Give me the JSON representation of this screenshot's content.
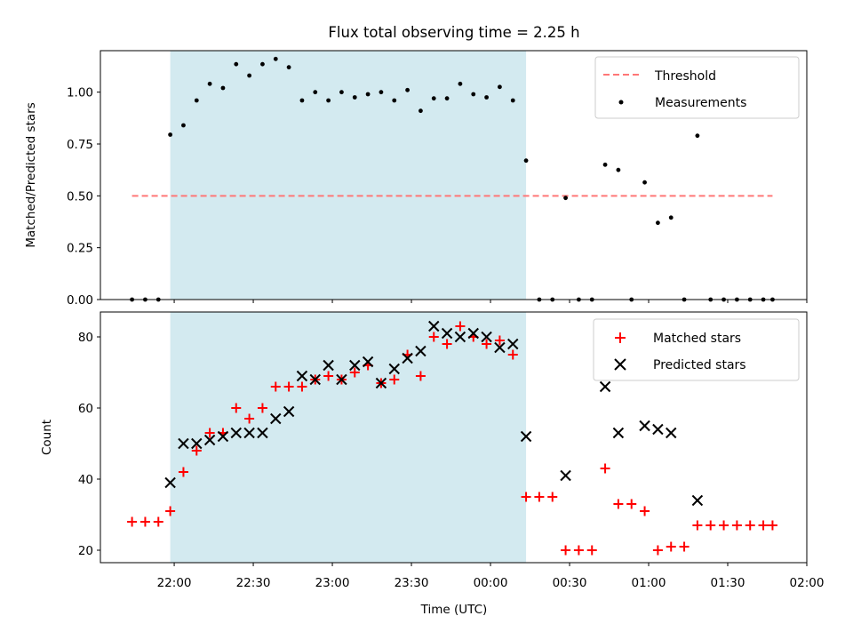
{
  "chart_data": {
    "title": "Flux total observing time = 2.25 h",
    "xlabel": "Time (UTC)",
    "x_ticks": [
      "22:00",
      "22:30",
      "23:00",
      "23:30",
      "00:00",
      "00:30",
      "01:00",
      "01:30",
      "02:00"
    ],
    "x_tick_minutes": [
      0,
      30,
      60,
      90,
      120,
      150,
      180,
      210,
      240
    ],
    "xlim_minutes": [
      -28,
      240
    ],
    "shaded_interval_minutes": [
      -1.5,
      133.5
    ],
    "shade_color": "#d3eaf0",
    "panels": [
      {
        "type": "scatter",
        "ylabel": "Matched/Predicted stars",
        "ylim": [
          0,
          1.2
        ],
        "y_ticks": [
          0.0,
          0.25,
          0.5,
          0.75,
          1.0
        ],
        "y_tick_labels": [
          "0.00",
          "0.25",
          "0.50",
          "0.75",
          "1.00"
        ],
        "threshold": {
          "name": "Threshold",
          "value": 0.5,
          "x_range": [
            -16,
            227
          ],
          "color": "#ff7777"
        },
        "legend": {
          "position": "upper right",
          "entries": [
            "Threshold",
            "Measurements"
          ]
        },
        "series": [
          {
            "name": "Measurements",
            "color": "#000000",
            "x": [
              -16,
              -11,
              -6,
              -1.5,
              3.5,
              8.5,
              13.5,
              18.5,
              23.5,
              28.5,
              33.5,
              38.5,
              43.5,
              48.5,
              53.5,
              58.5,
              63.5,
              68.5,
              73.5,
              78.5,
              83.5,
              88.5,
              93.5,
              98.5,
              103.5,
              108.5,
              113.5,
              118.5,
              123.5,
              128.5,
              133.5,
              138.5,
              143.5,
              148.5,
              153.5,
              158.5,
              163.5,
              168.5,
              173.5,
              178.5,
              183.5,
              188.5,
              193.5,
              198.5,
              203.5,
              208.5,
              213.5,
              218.5,
              223.5,
              227
            ],
            "y": [
              0,
              0,
              0,
              0.795,
              0.84,
              0.96,
              1.04,
              1.02,
              1.135,
              1.08,
              1.135,
              1.16,
              1.12,
              0.96,
              1.0,
              0.96,
              1.0,
              0.975,
              0.99,
              1.0,
              0.96,
              1.01,
              0.91,
              0.97,
              0.97,
              1.04,
              0.99,
              0.975,
              1.025,
              0.96,
              0.67,
              0,
              0,
              0.49,
              0,
              0,
              0.65,
              0.625,
              0,
              0.565,
              0.37,
              0.395,
              0,
              0.79,
              0,
              0,
              0,
              0,
              0,
              0
            ]
          }
        ]
      },
      {
        "type": "scatter",
        "ylabel": "Count",
        "ylim": [
          16.5,
          87
        ],
        "y_ticks": [
          20,
          40,
          60,
          80
        ],
        "y_tick_labels": [
          "20",
          "40",
          "60",
          "80"
        ],
        "legend": {
          "position": "upper right",
          "entries": [
            "Matched stars",
            "Predicted stars"
          ]
        },
        "series": [
          {
            "name": "Matched stars",
            "marker": "+",
            "color": "#ff0000",
            "x": [
              -16,
              -11,
              -6,
              -1.5,
              3.5,
              8.5,
              13.5,
              18.5,
              23.5,
              28.5,
              33.5,
              38.5,
              43.5,
              48.5,
              53.5,
              58.5,
              63.5,
              68.5,
              73.5,
              78.5,
              83.5,
              88.5,
              93.5,
              98.5,
              103.5,
              108.5,
              113.5,
              118.5,
              123.5,
              128.5,
              133.5,
              138.5,
              143.5,
              148.5,
              153.5,
              158.5,
              163.5,
              168.5,
              173.5,
              178.5,
              183.5,
              188.5,
              193.5,
              198.5,
              203.5,
              208.5,
              213.5,
              218.5,
              223.5,
              227
            ],
            "y": [
              28,
              28,
              28,
              31,
              42,
              48,
              53,
              53,
              60,
              57,
              60,
              66,
              66,
              66,
              68,
              69,
              68,
              70,
              72,
              67,
              68,
              75,
              69,
              80,
              78,
              83,
              80,
              78,
              79,
              75,
              35,
              35,
              35,
              20,
              20,
              20,
              43,
              33,
              33,
              31,
              20,
              21,
              21,
              27,
              27,
              27,
              27,
              27,
              27,
              27
            ]
          },
          {
            "name": "Predicted stars",
            "marker": "x",
            "color": "#000000",
            "x": [
              -1.5,
              3.5,
              8.5,
              13.5,
              18.5,
              23.5,
              28.5,
              33.5,
              38.5,
              43.5,
              48.5,
              53.5,
              58.5,
              63.5,
              68.5,
              73.5,
              78.5,
              83.5,
              88.5,
              93.5,
              98.5,
              103.5,
              108.5,
              113.5,
              118.5,
              123.5,
              128.5,
              133.5,
              148.5,
              163.5,
              168.5,
              178.5,
              183.5,
              188.5,
              198.5
            ],
            "y": [
              39,
              50,
              50,
              51,
              52,
              53,
              53,
              53,
              57,
              59,
              69,
              68,
              72,
              68,
              72,
              73,
              67,
              71,
              74,
              76,
              83,
              81,
              80,
              81,
              80,
              77,
              78,
              52,
              41,
              66,
              53,
              55,
              54,
              53,
              34
            ]
          }
        ]
      }
    ]
  }
}
